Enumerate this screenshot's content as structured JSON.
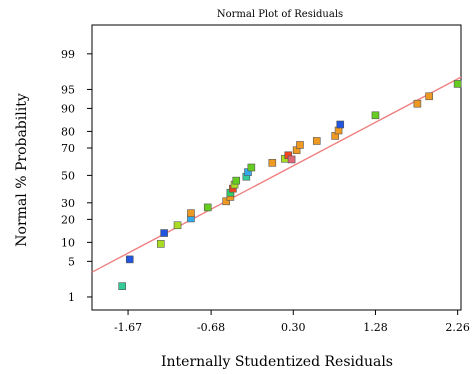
{
  "chart_data": {
    "type": "scatter",
    "title": "Normal Plot of Residuals",
    "xlabel": "Internally Studentized Residuals",
    "ylabel": "Normal % Probability",
    "xlim": [
      -2.1,
      2.3
    ],
    "x_ticks": [
      -1.67,
      -0.68,
      0.3,
      1.28,
      2.26
    ],
    "x_tick_labels": [
      "-1.67",
      "-0.68",
      "0.30",
      "1.28",
      "2.26"
    ],
    "y_ticks": [
      1,
      5,
      10,
      20,
      30,
      50,
      70,
      80,
      90,
      95,
      99
    ],
    "y_tick_labels": [
      "1",
      "5",
      "10",
      "20",
      "30",
      "50",
      "70",
      "80",
      "90",
      "95",
      "99"
    ],
    "y_scale": "normal-probability",
    "grid": false,
    "reference_line": {
      "color": "#f08080",
      "x": [
        -2.1,
        2.3
      ],
      "y": [
        3.2,
        97.0
      ]
    },
    "points": [
      {
        "x": -1.74,
        "y": 1.7,
        "color": "#33cc99"
      },
      {
        "x": -1.65,
        "y": 5.4,
        "color": "#2255dd"
      },
      {
        "x": -1.28,
        "y": 9.5,
        "color": "#aadd22"
      },
      {
        "x": -1.24,
        "y": 13.5,
        "color": "#2255dd"
      },
      {
        "x": -1.08,
        "y": 17.0,
        "color": "#aadd22"
      },
      {
        "x": -0.92,
        "y": 20.5,
        "color": "#33aaee"
      },
      {
        "x": -0.92,
        "y": 23.5,
        "color": "#ee9922"
      },
      {
        "x": -0.72,
        "y": 27.0,
        "color": "#66cc22"
      },
      {
        "x": -0.5,
        "y": 31.0,
        "color": "#ee9922"
      },
      {
        "x": -0.45,
        "y": 34.0,
        "color": "#ee9922"
      },
      {
        "x": -0.45,
        "y": 37.0,
        "color": "#33cc66"
      },
      {
        "x": -0.42,
        "y": 40.0,
        "color": "#ee4422"
      },
      {
        "x": -0.4,
        "y": 43.0,
        "color": "#aadd22"
      },
      {
        "x": -0.38,
        "y": 46.0,
        "color": "#66cc22"
      },
      {
        "x": -0.26,
        "y": 49.0,
        "color": "#33cc99"
      },
      {
        "x": -0.24,
        "y": 52.5,
        "color": "#33aaee"
      },
      {
        "x": -0.2,
        "y": 56.0,
        "color": "#66cc22"
      },
      {
        "x": 0.05,
        "y": 59.5,
        "color": "#ee9922"
      },
      {
        "x": 0.2,
        "y": 62.5,
        "color": "#aadd22"
      },
      {
        "x": 0.24,
        "y": 65.0,
        "color": "#ee4422"
      },
      {
        "x": 0.28,
        "y": 62.0,
        "color": "#dd6677"
      },
      {
        "x": 0.34,
        "y": 68.5,
        "color": "#ee9922"
      },
      {
        "x": 0.38,
        "y": 72.0,
        "color": "#ee9922"
      },
      {
        "x": 0.58,
        "y": 74.5,
        "color": "#ee9922"
      },
      {
        "x": 0.8,
        "y": 77.5,
        "color": "#ee9922"
      },
      {
        "x": 0.84,
        "y": 80.5,
        "color": "#ee9922"
      },
      {
        "x": 0.86,
        "y": 83.5,
        "color": "#2255dd"
      },
      {
        "x": 1.28,
        "y": 87.5,
        "color": "#66cc22"
      },
      {
        "x": 1.78,
        "y": 91.5,
        "color": "#ee9922"
      },
      {
        "x": 1.92,
        "y": 93.5,
        "color": "#ee9922"
      },
      {
        "x": 2.26,
        "y": 96.0,
        "color": "#66cc22"
      }
    ],
    "axis_color": "#000000",
    "marker_stroke": "#555555"
  }
}
